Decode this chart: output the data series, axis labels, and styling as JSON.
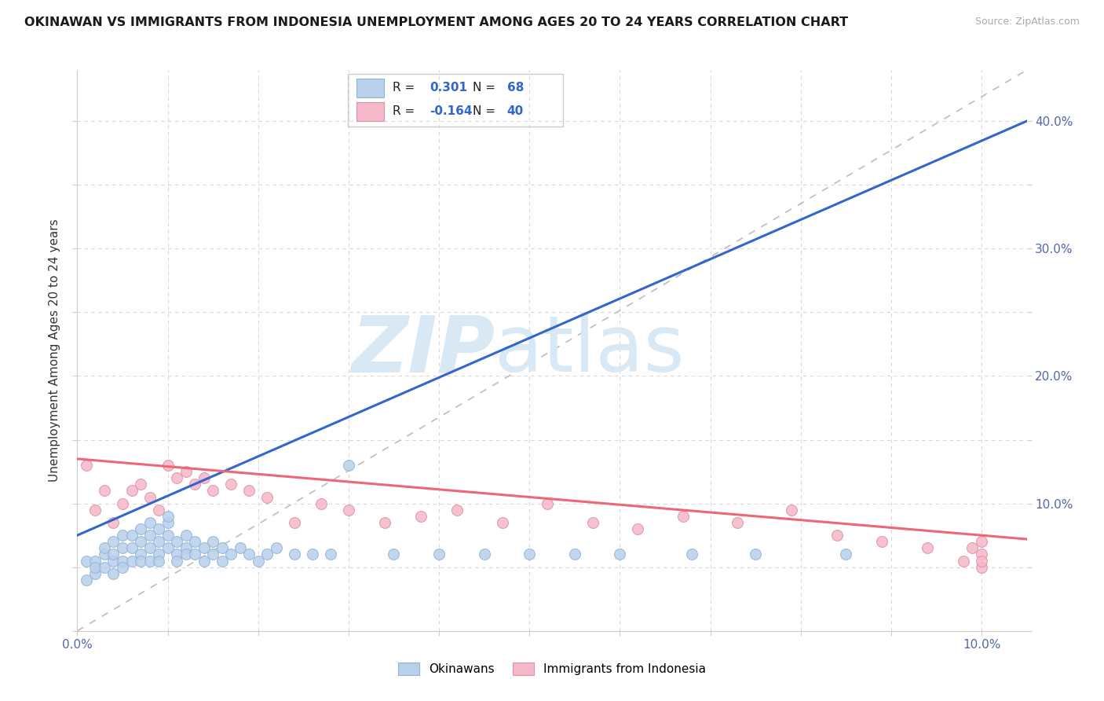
{
  "title": "OKINAWAN VS IMMIGRANTS FROM INDONESIA UNEMPLOYMENT AMONG AGES 20 TO 24 YEARS CORRELATION CHART",
  "source": "Source: ZipAtlas.com",
  "ylabel": "Unemployment Among Ages 20 to 24 years",
  "xlim": [
    0.0,
    0.105
  ],
  "ylim": [
    0.0,
    0.44
  ],
  "blue_R": 0.301,
  "blue_N": 68,
  "pink_R": -0.164,
  "pink_N": 40,
  "blue_fill": "#b8d0ea",
  "pink_fill": "#f5b8c8",
  "blue_edge": "#90b4d8",
  "pink_edge": "#e090a8",
  "blue_line": "#3366cc",
  "pink_line": "#ee6677",
  "diag_color": "#c0c0c0",
  "grid_color": "#d8d8d8",
  "legend_text_color": "#3366cc",
  "watermark_zip": "ZIP",
  "watermark_atlas": "atlas",
  "watermark_color": "#d8e8f4",
  "blue_label": "Okinawans",
  "pink_label": "Immigrants from Indonesia",
  "blue_x": [
    0.001,
    0.001,
    0.002,
    0.002,
    0.002,
    0.003,
    0.003,
    0.003,
    0.004,
    0.004,
    0.004,
    0.004,
    0.005,
    0.005,
    0.005,
    0.005,
    0.006,
    0.006,
    0.006,
    0.007,
    0.007,
    0.007,
    0.007,
    0.008,
    0.008,
    0.008,
    0.008,
    0.009,
    0.009,
    0.009,
    0.009,
    0.01,
    0.01,
    0.01,
    0.01,
    0.011,
    0.011,
    0.011,
    0.012,
    0.012,
    0.012,
    0.013,
    0.013,
    0.014,
    0.014,
    0.015,
    0.015,
    0.016,
    0.016,
    0.017,
    0.018,
    0.019,
    0.02,
    0.021,
    0.022,
    0.024,
    0.026,
    0.028,
    0.03,
    0.035,
    0.04,
    0.045,
    0.05,
    0.055,
    0.06,
    0.068,
    0.075,
    0.085
  ],
  "blue_y": [
    0.055,
    0.04,
    0.055,
    0.045,
    0.05,
    0.06,
    0.05,
    0.065,
    0.055,
    0.045,
    0.06,
    0.07,
    0.055,
    0.065,
    0.075,
    0.05,
    0.065,
    0.075,
    0.055,
    0.06,
    0.07,
    0.08,
    0.055,
    0.065,
    0.075,
    0.085,
    0.055,
    0.06,
    0.07,
    0.08,
    0.055,
    0.065,
    0.075,
    0.085,
    0.09,
    0.06,
    0.07,
    0.055,
    0.065,
    0.075,
    0.06,
    0.07,
    0.06,
    0.065,
    0.055,
    0.06,
    0.07,
    0.065,
    0.055,
    0.06,
    0.065,
    0.06,
    0.055,
    0.06,
    0.065,
    0.06,
    0.06,
    0.06,
    0.13,
    0.06,
    0.06,
    0.06,
    0.06,
    0.06,
    0.06,
    0.06,
    0.06,
    0.06
  ],
  "pink_x": [
    0.001,
    0.002,
    0.003,
    0.004,
    0.005,
    0.006,
    0.007,
    0.008,
    0.009,
    0.01,
    0.011,
    0.012,
    0.013,
    0.014,
    0.015,
    0.017,
    0.019,
    0.021,
    0.024,
    0.027,
    0.03,
    0.034,
    0.038,
    0.042,
    0.047,
    0.052,
    0.057,
    0.062,
    0.067,
    0.073,
    0.079,
    0.084,
    0.089,
    0.094,
    0.098,
    0.099,
    0.1,
    0.1,
    0.1,
    0.1
  ],
  "pink_y": [
    0.13,
    0.095,
    0.11,
    0.085,
    0.1,
    0.11,
    0.115,
    0.105,
    0.095,
    0.13,
    0.12,
    0.125,
    0.115,
    0.12,
    0.11,
    0.115,
    0.11,
    0.105,
    0.085,
    0.1,
    0.095,
    0.085,
    0.09,
    0.095,
    0.085,
    0.1,
    0.085,
    0.08,
    0.09,
    0.085,
    0.095,
    0.075,
    0.07,
    0.065,
    0.055,
    0.065,
    0.05,
    0.06,
    0.055,
    0.07
  ],
  "blue_line_x0": 0.0,
  "blue_line_y0": 0.075,
  "blue_line_x1": 0.105,
  "blue_line_y1": 0.4,
  "pink_line_x0": 0.0,
  "pink_line_y0": 0.135,
  "pink_line_x1": 0.105,
  "pink_line_y1": 0.072
}
